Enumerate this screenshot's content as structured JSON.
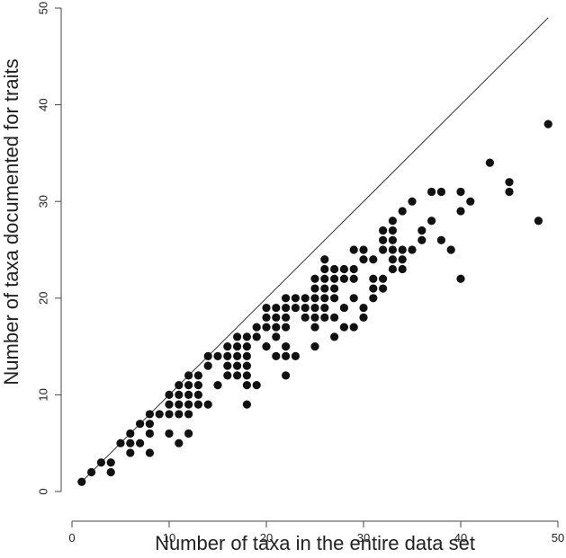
{
  "chart_data": {
    "type": "scatter",
    "title": "",
    "xlabel": "Number of taxa in the entire data set",
    "ylabel": "Number of taxa documented for traits",
    "xlim": [
      0,
      50
    ],
    "ylim": [
      0,
      50
    ],
    "xticks": [
      0,
      10,
      20,
      30,
      40,
      50
    ],
    "yticks": [
      0,
      10,
      20,
      30,
      40,
      50
    ],
    "xtick_labels": [
      "0",
      "10",
      "20",
      "30",
      "40",
      "50"
    ],
    "ytick_labels": [
      "0",
      "10",
      "20",
      "30",
      "40",
      "50"
    ],
    "grid": false,
    "reference_line": {
      "type": "identity",
      "x": [
        1,
        49
      ],
      "y": [
        1,
        49
      ]
    },
    "point_color": "#111111",
    "line_color": "#333333",
    "points": [
      [
        1,
        1
      ],
      [
        2,
        2
      ],
      [
        3,
        3
      ],
      [
        4,
        2
      ],
      [
        4,
        3
      ],
      [
        5,
        5
      ],
      [
        6,
        4
      ],
      [
        6,
        5
      ],
      [
        6,
        6
      ],
      [
        7,
        5
      ],
      [
        7,
        7
      ],
      [
        8,
        4
      ],
      [
        8,
        6
      ],
      [
        8,
        7
      ],
      [
        8,
        8
      ],
      [
        9,
        8
      ],
      [
        10,
        6
      ],
      [
        10,
        8
      ],
      [
        10,
        9
      ],
      [
        10,
        10
      ],
      [
        11,
        5
      ],
      [
        11,
        8
      ],
      [
        11,
        9
      ],
      [
        11,
        10
      ],
      [
        11,
        11
      ],
      [
        12,
        6
      ],
      [
        12,
        8
      ],
      [
        12,
        9
      ],
      [
        12,
        10
      ],
      [
        12,
        11
      ],
      [
        12,
        12
      ],
      [
        13,
        9
      ],
      [
        13,
        10
      ],
      [
        13,
        11
      ],
      [
        13,
        12
      ],
      [
        14,
        9
      ],
      [
        14,
        13
      ],
      [
        14,
        14
      ],
      [
        15,
        11
      ],
      [
        15,
        14
      ],
      [
        16,
        12
      ],
      [
        16,
        13
      ],
      [
        16,
        14
      ],
      [
        16,
        15
      ],
      [
        17,
        12
      ],
      [
        17,
        13
      ],
      [
        17,
        14
      ],
      [
        17,
        15
      ],
      [
        17,
        16
      ],
      [
        18,
        9
      ],
      [
        18,
        12
      ],
      [
        18,
        13
      ],
      [
        18,
        14
      ],
      [
        18,
        15
      ],
      [
        18,
        16
      ],
      [
        18,
        11
      ],
      [
        19,
        11
      ],
      [
        19,
        16
      ],
      [
        19,
        17
      ],
      [
        20,
        15
      ],
      [
        20,
        17
      ],
      [
        20,
        18
      ],
      [
        20,
        19
      ],
      [
        21,
        14
      ],
      [
        21,
        16
      ],
      [
        21,
        17
      ],
      [
        21,
        18
      ],
      [
        21,
        19
      ],
      [
        22,
        12
      ],
      [
        22,
        14
      ],
      [
        22,
        15
      ],
      [
        22,
        17
      ],
      [
        22,
        18
      ],
      [
        22,
        19
      ],
      [
        22,
        20
      ],
      [
        23,
        14
      ],
      [
        23,
        19
      ],
      [
        23,
        20
      ],
      [
        24,
        18
      ],
      [
        24,
        19
      ],
      [
        24,
        20
      ],
      [
        25,
        15
      ],
      [
        25,
        17
      ],
      [
        25,
        18
      ],
      [
        25,
        19
      ],
      [
        25,
        20
      ],
      [
        25,
        21
      ],
      [
        25,
        22
      ],
      [
        26,
        18
      ],
      [
        26,
        19
      ],
      [
        26,
        20
      ],
      [
        26,
        21
      ],
      [
        26,
        22
      ],
      [
        26,
        23
      ],
      [
        26,
        24
      ],
      [
        27,
        16
      ],
      [
        27,
        18
      ],
      [
        27,
        20
      ],
      [
        27,
        21
      ],
      [
        27,
        22
      ],
      [
        27,
        23
      ],
      [
        28,
        17
      ],
      [
        28,
        19
      ],
      [
        28,
        22
      ],
      [
        28,
        23
      ],
      [
        29,
        17
      ],
      [
        29,
        20
      ],
      [
        29,
        22
      ],
      [
        29,
        23
      ],
      [
        29,
        25
      ],
      [
        30,
        18
      ],
      [
        30,
        19
      ],
      [
        30,
        24
      ],
      [
        30,
        25
      ],
      [
        31,
        20
      ],
      [
        31,
        21
      ],
      [
        31,
        22
      ],
      [
        31,
        24
      ],
      [
        32,
        21
      ],
      [
        32,
        22
      ],
      [
        32,
        25
      ],
      [
        32,
        26
      ],
      [
        32,
        27
      ],
      [
        33,
        23
      ],
      [
        33,
        24
      ],
      [
        33,
        25
      ],
      [
        33,
        26
      ],
      [
        33,
        27
      ],
      [
        33,
        28
      ],
      [
        34,
        23
      ],
      [
        34,
        24
      ],
      [
        34,
        25
      ],
      [
        34,
        29
      ],
      [
        35,
        25
      ],
      [
        35,
        30
      ],
      [
        36,
        26
      ],
      [
        36,
        27
      ],
      [
        37,
        28
      ],
      [
        37,
        31
      ],
      [
        38,
        26
      ],
      [
        38,
        31
      ],
      [
        39,
        25
      ],
      [
        40,
        22
      ],
      [
        40,
        29
      ],
      [
        40,
        31
      ],
      [
        41,
        30
      ],
      [
        43,
        34
      ],
      [
        45,
        31
      ],
      [
        45,
        32
      ],
      [
        48,
        28
      ],
      [
        49,
        38
      ]
    ]
  }
}
